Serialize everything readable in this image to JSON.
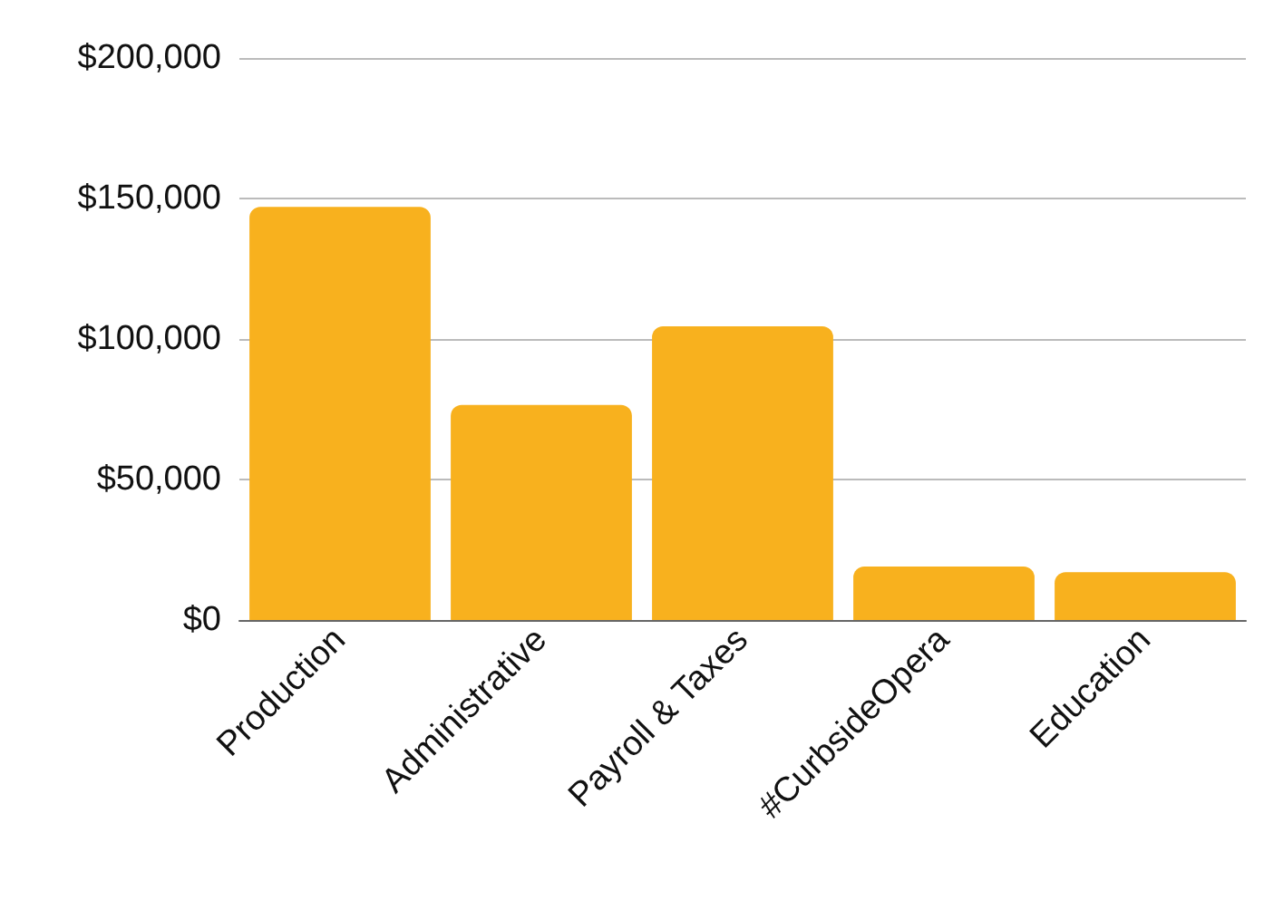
{
  "chart_data": {
    "type": "bar",
    "categories": [
      "Production",
      "Administrative",
      "Payroll & Taxes",
      "#CurbsideOpera",
      "Education"
    ],
    "values": [
      147000,
      76500,
      104500,
      19000,
      17000
    ],
    "color": "#f8b11e",
    "ylim": [
      0,
      200000
    ],
    "yticks": [
      {
        "value": 0,
        "label": "$0"
      },
      {
        "value": 50000,
        "label": "$50,000"
      },
      {
        "value": 100000,
        "label": "$100,000"
      },
      {
        "value": 150000,
        "label": "$150,000"
      },
      {
        "value": 200000,
        "label": "$200,000"
      }
    ],
    "grid": "y"
  }
}
